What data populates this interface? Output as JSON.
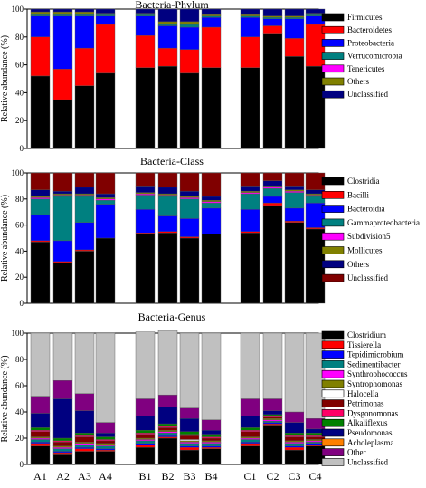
{
  "chart_data": [
    {
      "type": "bar",
      "stacked": true,
      "title": "Bacteria-Phylum",
      "ylabel": "Relative abundance (%)",
      "ylim": [
        0,
        100
      ],
      "yticks": [
        "0",
        "20",
        "40",
        "60",
        "80",
        "100"
      ],
      "categories": [
        "A1",
        "A2",
        "A3",
        "A4",
        "B1",
        "B2",
        "B3",
        "B4",
        "C1",
        "C2",
        "C3",
        "C4"
      ],
      "legend_placement": "right",
      "series": [
        {
          "name": "Firmicutes",
          "color": "#000000",
          "values": [
            52,
            35,
            45,
            54,
            58,
            59,
            54,
            58,
            58,
            82,
            66,
            59
          ]
        },
        {
          "name": "Bacteroidetes",
          "color": "#ff0000",
          "values": [
            28,
            22,
            27,
            35,
            23,
            13,
            17,
            29,
            22,
            6,
            13,
            30
          ]
        },
        {
          "name": "Proteobacteria",
          "color": "#0000ff",
          "values": [
            15,
            38,
            23,
            6,
            14,
            16,
            16,
            7,
            14,
            5,
            14,
            6
          ]
        },
        {
          "name": "Verrucomicrobia",
          "color": "#008080",
          "values": [
            1,
            1,
            1,
            1,
            1,
            1,
            2,
            1,
            1,
            1,
            1,
            1
          ]
        },
        {
          "name": "Tenericutes",
          "color": "#ff00ff",
          "values": [
            0,
            0,
            0,
            0,
            0,
            0,
            0,
            0,
            0,
            0,
            0,
            0
          ]
        },
        {
          "name": "Others",
          "color": "#808000",
          "values": [
            2,
            2,
            2,
            1,
            1,
            2,
            2,
            1,
            1,
            1,
            1,
            1
          ]
        },
        {
          "name": "Unclassified",
          "color": "#000080",
          "values": [
            2,
            2,
            2,
            3,
            3,
            9,
            9,
            4,
            4,
            5,
            5,
            3
          ]
        }
      ]
    },
    {
      "type": "bar",
      "stacked": true,
      "title": "Bacteria-Class",
      "ylabel": "Relative abundance (%)",
      "ylim": [
        0,
        100
      ],
      "yticks": [
        "0",
        "20",
        "40",
        "60",
        "80",
        "100"
      ],
      "categories": [
        "A1",
        "A2",
        "A3",
        "A4",
        "B1",
        "B2",
        "B3",
        "B4",
        "C1",
        "C2",
        "C3",
        "C4"
      ],
      "legend_placement": "right",
      "series": [
        {
          "name": "Clostridia",
          "color": "#000000",
          "values": [
            47,
            31,
            40,
            50,
            53,
            54,
            50,
            53,
            54,
            75,
            62,
            57
          ]
        },
        {
          "name": "Bacilli",
          "color": "#ff0000",
          "values": [
            1,
            1,
            1,
            0,
            1,
            1,
            1,
            0,
            1,
            2,
            1,
            1
          ]
        },
        {
          "name": "Bacteroidia",
          "color": "#0000ff",
          "values": [
            20,
            16,
            21,
            26,
            18,
            12,
            14,
            20,
            17,
            5,
            10,
            19
          ]
        },
        {
          "name": "Gammaproteobacteria",
          "color": "#008080",
          "values": [
            12,
            34,
            20,
            3,
            11,
            15,
            15,
            4,
            12,
            6,
            12,
            5
          ]
        },
        {
          "name": "Subdivision5",
          "color": "#ff00ff",
          "values": [
            1,
            1,
            1,
            1,
            1,
            1,
            1,
            1,
            1,
            1,
            1,
            1
          ]
        },
        {
          "name": "Mollicutes",
          "color": "#808000",
          "values": [
            1,
            1,
            1,
            1,
            1,
            1,
            1,
            1,
            1,
            1,
            1,
            1
          ]
        },
        {
          "name": "Others",
          "color": "#000080",
          "values": [
            5,
            2,
            5,
            3,
            5,
            5,
            4,
            3,
            4,
            4,
            3,
            3
          ]
        },
        {
          "name": "Unclassified",
          "color": "#800000",
          "values": [
            13,
            14,
            11,
            16,
            10,
            11,
            14,
            18,
            10,
            6,
            10,
            13
          ]
        }
      ]
    },
    {
      "type": "bar",
      "stacked": true,
      "title": "Bacteria-Genus",
      "ylabel": "Relative abundance (%)",
      "ylim": [
        0,
        100
      ],
      "yticks": [
        "0",
        "20",
        "40",
        "60",
        "80",
        "100"
      ],
      "categories": [
        "A1",
        "A2",
        "A3",
        "A4",
        "B1",
        "B2",
        "B3",
        "B4",
        "C1",
        "C2",
        "C3",
        "C4"
      ],
      "legend_placement": "right",
      "series": [
        {
          "name": "Clostridium",
          "color": "#000000",
          "values": [
            14,
            8,
            10,
            10,
            13,
            20,
            11,
            12,
            14,
            30,
            11,
            14
          ]
        },
        {
          "name": "Tissierella",
          "color": "#ff0000",
          "values": [
            2,
            1,
            2,
            1,
            2,
            1,
            2,
            1,
            2,
            1,
            2,
            1
          ]
        },
        {
          "name": "Tepidimicrobium",
          "color": "#0000ff",
          "values": [
            1,
            1,
            1,
            1,
            1,
            1,
            1,
            1,
            1,
            1,
            1,
            1
          ]
        },
        {
          "name": "Sedimentibacter",
          "color": "#008080",
          "values": [
            2,
            2,
            2,
            2,
            2,
            2,
            2,
            2,
            2,
            1,
            2,
            1
          ]
        },
        {
          "name": "Synthrophococcus",
          "color": "#ff00ff",
          "values": [
            1,
            1,
            1,
            1,
            1,
            1,
            1,
            1,
            1,
            1,
            1,
            1
          ]
        },
        {
          "name": "Syntrophomonas",
          "color": "#808000",
          "values": [
            1,
            1,
            1,
            1,
            1,
            1,
            1,
            1,
            1,
            1,
            1,
            1
          ]
        },
        {
          "name": "Halocella",
          "color": "#ffffff",
          "values": [
            0,
            0,
            0,
            0,
            0,
            0,
            1,
            0,
            0,
            0,
            0,
            0
          ]
        },
        {
          "name": "Petrimonas",
          "color": "#800000",
          "values": [
            4,
            3,
            4,
            2,
            3,
            2,
            3,
            2,
            4,
            1,
            3,
            2
          ]
        },
        {
          "name": "Dysgonomonas",
          "color": "#ff0066",
          "values": [
            1,
            1,
            1,
            1,
            1,
            1,
            1,
            1,
            1,
            1,
            1,
            1
          ]
        },
        {
          "name": "Alkaliflexus",
          "color": "#008000",
          "values": [
            2,
            2,
            2,
            2,
            2,
            2,
            2,
            2,
            2,
            1,
            2,
            2
          ]
        },
        {
          "name": "Pseudomonas",
          "color": "#000080",
          "values": [
            11,
            30,
            17,
            3,
            11,
            13,
            10,
            3,
            9,
            3,
            8,
            3
          ]
        },
        {
          "name": "Acholeplasma",
          "color": "#ff8000",
          "values": [
            0,
            0,
            0,
            0,
            0,
            0,
            0,
            0,
            0,
            0,
            0,
            0
          ]
        },
        {
          "name": "Other",
          "color": "#800080",
          "values": [
            13,
            14,
            13,
            8,
            13,
            9,
            8,
            8,
            13,
            9,
            8,
            8
          ]
        },
        {
          "name": "Unclassified",
          "color": "#c0c0c0",
          "values": [
            48,
            36,
            46,
            68,
            51,
            49,
            57,
            66,
            50,
            50,
            60,
            65
          ]
        }
      ]
    }
  ]
}
